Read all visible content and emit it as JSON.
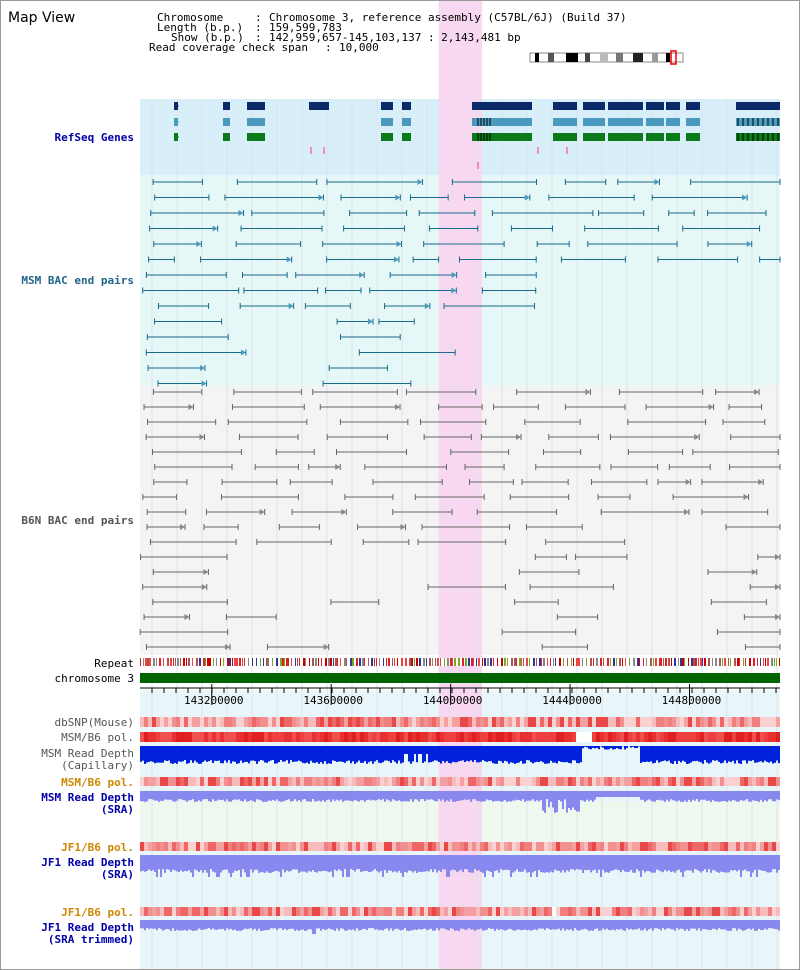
{
  "title": "Map View",
  "header": {
    "chromosome_label": "Chromosome",
    "chromosome_value": "Chromosome 3, reference assembly (C57BL/6J) (Build 37)",
    "length_label": "Length (b.p.)",
    "length_value": "159,599,783",
    "show_label": "Show (b.p.)",
    "show_value": "142,959,657-145,103,137 : 2,143,481 bp",
    "coverage_label": "Read coverage check span",
    "coverage_value": "10,000"
  },
  "tracks": {
    "refseq": "RefSeq Genes",
    "msm_bac": "MSM BAC end pairs",
    "b6n_bac": "B6N BAC end pairs",
    "repeat": "Repeat",
    "chromosome": "chromosome 3",
    "dbsnp": "dbSNP(Mouse)",
    "msm_b6_pol_1": "MSM/B6 pol.",
    "msm_depth_cap_1": "MSM Read Depth",
    "msm_depth_cap_2": "(Capillary)",
    "msm_b6_pol_2": "MSM/B6 pol.",
    "msm_depth_sra_1": "MSM Read Depth",
    "msm_depth_sra_2": "(SRA)",
    "jf1_b6_pol_1": "JF1/B6 pol.",
    "jf1_depth_sra_1": "JF1 Read Depth",
    "jf1_depth_sra_2": "(SRA)",
    "jf1_b6_pol_2": "JF1/B6 pol.",
    "jf1_depth_trim_1": "JF1 Read Depth",
    "jf1_depth_trim_2": "(SRA trimmed)"
  },
  "axis": {
    "ticks": [
      "143200000",
      "143600000",
      "144000000",
      "144400000",
      "144800000"
    ],
    "start": 142959657,
    "end": 145103137,
    "highlight_start": 143960000,
    "highlight_end": 144105000
  },
  "colors": {
    "refseq_bg": "#d8eef8",
    "msm_bg": "#e6f7f7",
    "b6n_bg": "#f4f4f4",
    "highlight": "#f7d8f0",
    "gene_dark": "#0a2a6a",
    "gene_mid": "#4a9ac0",
    "gene_green": "#0a7a1a",
    "msm_line": "#1a6a8a",
    "b6n_line": "#666666",
    "chrom_bar": "#006400",
    "label_blue": "#0000aa",
    "label_teal": "#226688",
    "label_gray": "#555555",
    "label_orange": "#cc8800",
    "depth_blue": "#0022dd",
    "depth_light": "#8888ee"
  }
}
